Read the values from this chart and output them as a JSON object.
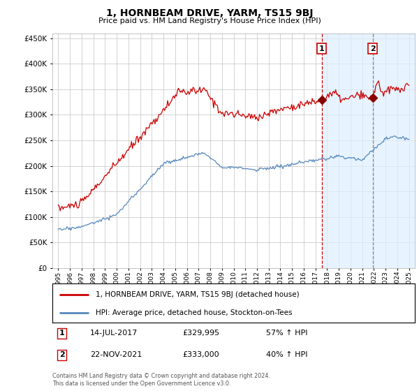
{
  "title": "1, HORNBEAM DRIVE, YARM, TS15 9BJ",
  "subtitle": "Price paid vs. HM Land Registry's House Price Index (HPI)",
  "ytick_vals": [
    0,
    50000,
    100000,
    150000,
    200000,
    250000,
    300000,
    350000,
    400000,
    450000
  ],
  "ylim": [
    0,
    460000
  ],
  "xlim_start": 1994.5,
  "xlim_end": 2025.5,
  "sale1_x": 2017.54,
  "sale1_y": 329995,
  "sale1_label": "1",
  "sale1_date": "14-JUL-2017",
  "sale1_price": "£329,995",
  "sale1_hpi": "57% ↑ HPI",
  "sale2_x": 2021.9,
  "sale2_y": 333000,
  "sale2_label": "2",
  "sale2_date": "22-NOV-2021",
  "sale2_price": "£333,000",
  "sale2_hpi": "40% ↑ HPI",
  "line_color_red": "#cc0000",
  "line_color_blue": "#5588bb",
  "shade_color": "#ddeeff",
  "grid_color": "#cccccc",
  "background_color": "#ffffff",
  "legend_label_red": "1, HORNBEAM DRIVE, YARM, TS15 9BJ (detached house)",
  "legend_label_blue": "HPI: Average price, detached house, Stockton-on-Tees",
  "footer": "Contains HM Land Registry data © Crown copyright and database right 2024.\nThis data is licensed under the Open Government Licence v3.0.",
  "xtick_years": [
    1995,
    1996,
    1997,
    1998,
    1999,
    2000,
    2001,
    2002,
    2003,
    2004,
    2005,
    2006,
    2007,
    2008,
    2009,
    2010,
    2011,
    2012,
    2013,
    2014,
    2015,
    2016,
    2017,
    2018,
    2019,
    2020,
    2021,
    2022,
    2023,
    2024,
    2025
  ]
}
